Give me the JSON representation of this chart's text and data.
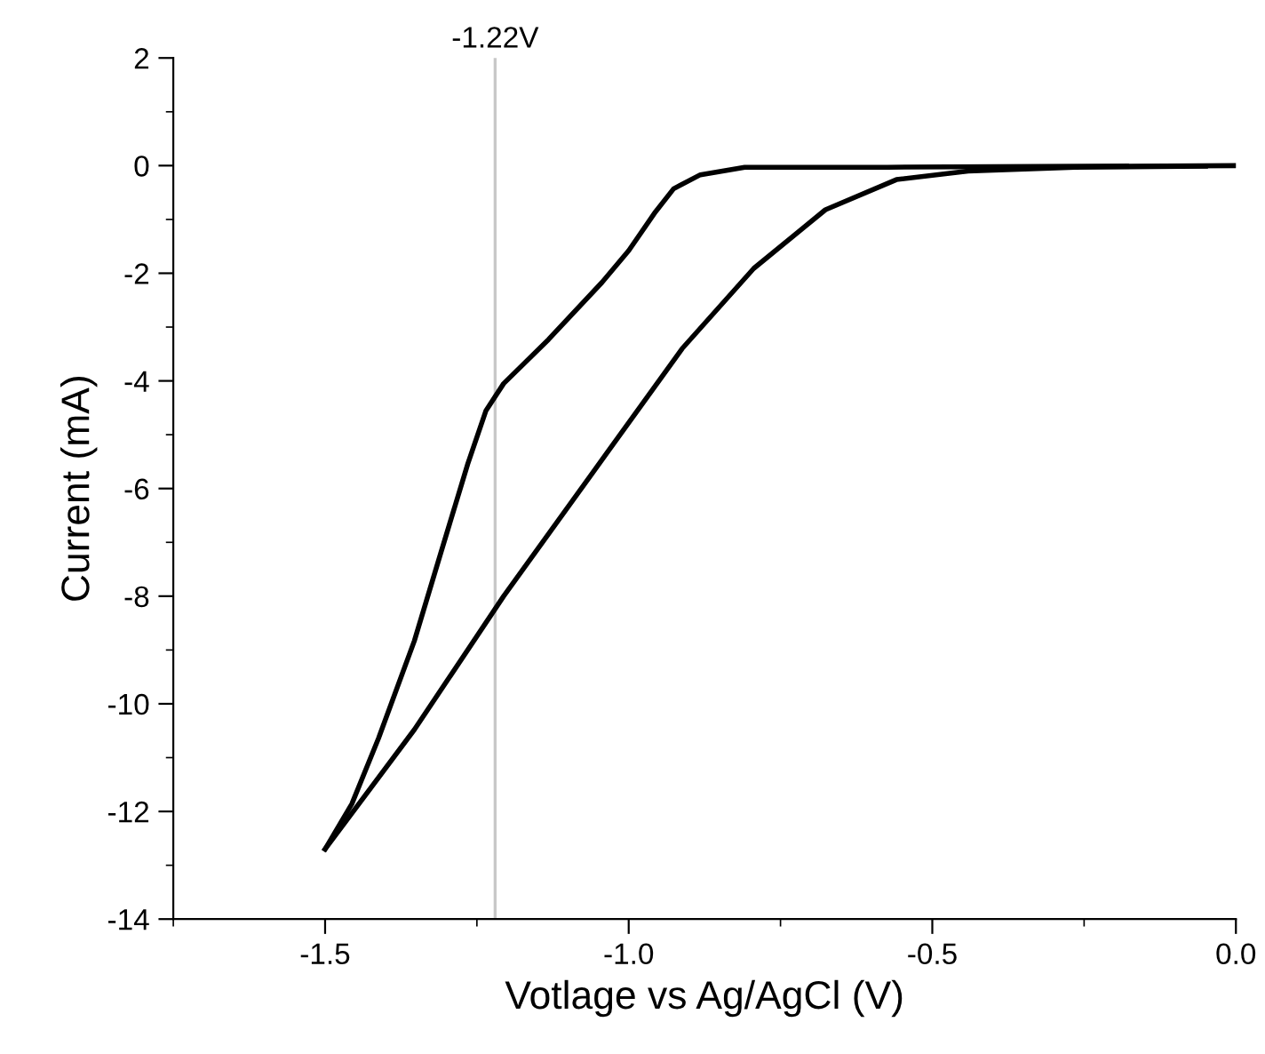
{
  "chart_data": {
    "type": "line",
    "xlabel": "Votlage vs Ag/AgCl (V)",
    "ylabel": "Current (mA)",
    "series": [
      {
        "color": "#000000",
        "x": [
          0,
          -0.574,
          -0.809,
          -0.882,
          -0.926,
          -0.956,
          -1.0,
          -1.044,
          -1.132,
          -1.206,
          -1.235,
          -1.265,
          -1.309,
          -1.353,
          -1.412,
          -1.456,
          -1.5
        ],
        "values": [
          0,
          -0.03,
          -0.03,
          -0.17,
          -0.43,
          -0.86,
          -1.58,
          -2.17,
          -3.23,
          -4.05,
          -4.55,
          -5.54,
          -7.18,
          -8.83,
          -10.64,
          -11.86,
          -12.7
        ]
      },
      {
        "color": "#000000",
        "x": [
          -1.5,
          -1.353,
          -1.206,
          -1.059,
          -0.912,
          -0.794,
          -0.676,
          -0.559,
          -0.441,
          -0.265,
          -0.05
        ],
        "values": [
          -12.7,
          -10.48,
          -8.0,
          -5.7,
          -3.4,
          -1.91,
          -0.82,
          -0.26,
          -0.1,
          -0.03,
          -0.01
        ]
      }
    ],
    "xlim": [
      -1.75,
      0
    ],
    "ylim": [
      -14,
      2
    ],
    "xticks": [
      {
        "value": -1.5,
        "label": "-1.5"
      },
      {
        "value": -1.0,
        "label": "-1.0"
      },
      {
        "value": -0.5,
        "label": "-0.5"
      },
      {
        "value": 0,
        "label": "0.0"
      }
    ],
    "yticks": [
      {
        "value": -14,
        "label": "-14"
      },
      {
        "value": -12,
        "label": "-12"
      },
      {
        "value": -10,
        "label": "-10"
      },
      {
        "value": -8,
        "label": "-8"
      },
      {
        "value": -6,
        "label": "-6"
      },
      {
        "value": -4,
        "label": "-4"
      },
      {
        "value": -2,
        "label": "-2"
      },
      0,
      2
    ],
    "ref_lines": [
      {
        "axis": "x",
        "value": -1.22,
        "label": "-1.22V",
        "color": "#c8c8c8"
      }
    ],
    "line_style": "solid",
    "marker": "none",
    "grid": false,
    "legend": false
  }
}
